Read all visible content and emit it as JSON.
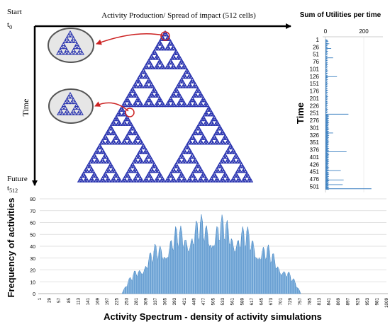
{
  "diagram": {
    "top_label": "Activity  Production/ Spread of impact (512 cells)",
    "start_label": "Start",
    "t0_label": "t",
    "t0_sub": "0",
    "time_label": "Time",
    "future_label": "Future",
    "t512_label": "t",
    "t512_sub": "512",
    "colors": {
      "fractal": "#2b35b0",
      "arrow": "#cc2222",
      "axis": "#000000",
      "bars": "#3a7fc0",
      "lens_border": "#555555",
      "lens_fill": "#e6e6e6"
    }
  },
  "chart_data": [
    {
      "type": "bar",
      "orientation": "horizontal",
      "title": "Sum of Utilities per time",
      "ylabel": "Time",
      "xlim": [
        0,
        300
      ],
      "x_ticks": [
        "0",
        "200"
      ],
      "y_ticks": [
        "1",
        "26",
        "51",
        "76",
        "101",
        "126",
        "151",
        "176",
        "201",
        "226",
        "251",
        "276",
        "301",
        "326",
        "351",
        "376",
        "401",
        "426",
        "451",
        "476",
        "501"
      ],
      "peaks": [
        {
          "time": 2,
          "value": 5
        },
        {
          "time": 4,
          "value": 10
        },
        {
          "time": 8,
          "value": 15
        },
        {
          "time": 16,
          "value": 20
        },
        {
          "time": 32,
          "value": 30
        },
        {
          "time": 64,
          "value": 40
        },
        {
          "time": 128,
          "value": 60
        },
        {
          "time": 256,
          "value": 120
        },
        {
          "time": 320,
          "value": 40
        },
        {
          "time": 384,
          "value": 110
        },
        {
          "time": 448,
          "value": 80
        },
        {
          "time": 480,
          "value": 95
        },
        {
          "time": 496,
          "value": 90
        },
        {
          "time": 510,
          "value": 240
        }
      ]
    },
    {
      "type": "area",
      "xlabel": "Activity  Spectrum - density of activity simulations",
      "ylabel": "Frequency of activities",
      "ylim": [
        0,
        80
      ],
      "xlim": [
        1,
        1009
      ],
      "y_ticks": [
        "0",
        "10",
        "20",
        "30",
        "40",
        "50",
        "60",
        "70",
        "80"
      ],
      "x_ticks": [
        "1",
        "29",
        "57",
        "85",
        "113",
        "141",
        "169",
        "197",
        "225",
        "253",
        "281",
        "309",
        "337",
        "365",
        "393",
        "421",
        "449",
        "477",
        "505",
        "533",
        "561",
        "589",
        "617",
        "645",
        "673",
        "701",
        "729",
        "757",
        "785",
        "813",
        "841",
        "869",
        "897",
        "925",
        "953",
        "981",
        "1009"
      ],
      "data_extent": [
        240,
        760
      ],
      "peak": 68
    }
  ]
}
